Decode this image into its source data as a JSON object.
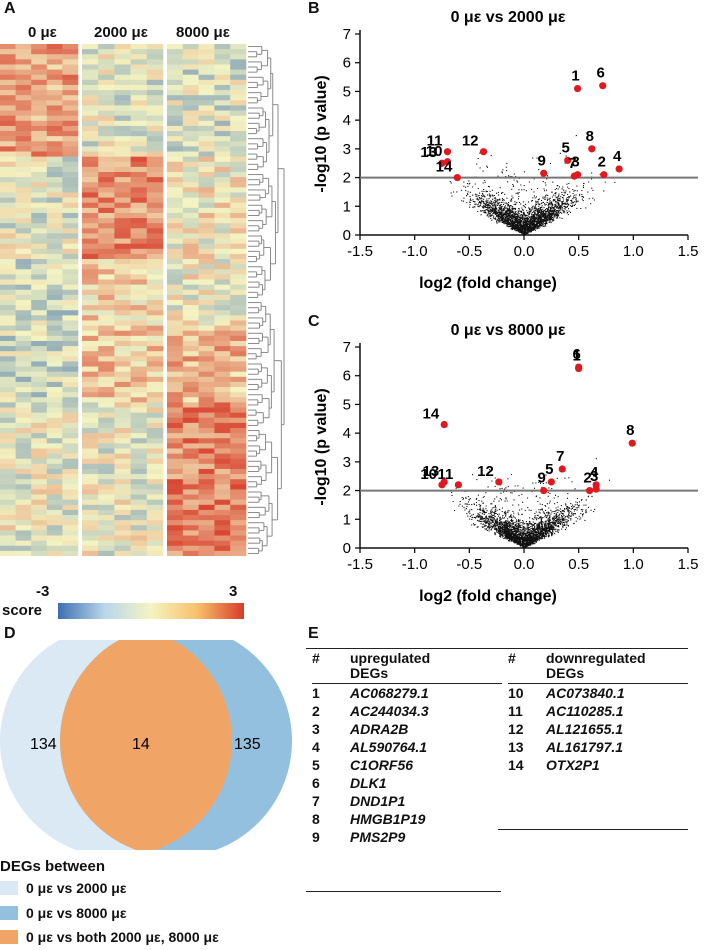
{
  "panels": {
    "a": "A",
    "b": "B",
    "c": "C",
    "d": "D",
    "e": "E"
  },
  "heatmap": {
    "groups": [
      "0 με",
      "2000 με",
      "8000 με"
    ],
    "scale_min": "-3",
    "scale_max": "3",
    "scale_label": "score",
    "colors": {
      "low": "#3d6fb0",
      "mid": "#f4f4c2",
      "high": "#d73c2a"
    }
  },
  "volcano_b": {
    "title": "0 με vs 2000  με",
    "xlabel": "log2 (fold change)",
    "ylabel": "-log10 (p value)",
    "xticks": [
      "-1.5",
      "-1.0",
      "-0.5",
      "0.0",
      "0.5",
      "1.0",
      "1.5"
    ],
    "yticks": [
      "0",
      "1",
      "2",
      "3",
      "4",
      "5",
      "6",
      "7"
    ],
    "threshold": 2,
    "labels": [
      {
        "id": "1",
        "x": 0.49,
        "y": 5.1
      },
      {
        "id": "6",
        "x": 0.72,
        "y": 5.2
      },
      {
        "id": "8",
        "x": 0.62,
        "y": 3.0
      },
      {
        "id": "5",
        "x": 0.4,
        "y": 2.6
      },
      {
        "id": "3",
        "x": 0.49,
        "y": 2.1
      },
      {
        "id": "2",
        "x": 0.73,
        "y": 2.1
      },
      {
        "id": "4",
        "x": 0.87,
        "y": 2.3
      },
      {
        "id": "7",
        "x": 0.46,
        "y": 2.05
      },
      {
        "id": "9",
        "x": 0.18,
        "y": 2.15
      },
      {
        "id": "11",
        "x": -0.7,
        "y": 2.9
      },
      {
        "id": "12",
        "x": -0.37,
        "y": 2.9
      },
      {
        "id": "13",
        "x": -0.75,
        "y": 2.5
      },
      {
        "id": "10",
        "x": -0.7,
        "y": 2.55
      },
      {
        "id": "14",
        "x": -0.61,
        "y": 2.0
      }
    ]
  },
  "volcano_c": {
    "title": "0 με vs 8000  με",
    "xlabel": "log2 (fold change)",
    "ylabel": "-log10 (p value)",
    "xticks": [
      "-1.5",
      "-1.0",
      "-0.5",
      "0.0",
      "0.5",
      "1.0",
      "1.5"
    ],
    "yticks": [
      "0",
      "1",
      "2",
      "3",
      "4",
      "5",
      "6",
      "7"
    ],
    "threshold": 2,
    "labels": [
      {
        "id": "6",
        "x": 0.5,
        "y": 6.3
      },
      {
        "id": "1",
        "x": 0.5,
        "y": 6.25
      },
      {
        "id": "8",
        "x": 0.99,
        "y": 3.65
      },
      {
        "id": "14",
        "x": -0.73,
        "y": 4.3
      },
      {
        "id": "7",
        "x": 0.35,
        "y": 2.75
      },
      {
        "id": "5",
        "x": 0.25,
        "y": 2.3
      },
      {
        "id": "4",
        "x": 0.66,
        "y": 2.2
      },
      {
        "id": "2",
        "x": 0.6,
        "y": 2.0
      },
      {
        "id": "3",
        "x": 0.66,
        "y": 2.05
      },
      {
        "id": "9",
        "x": 0.18,
        "y": 2.0
      },
      {
        "id": "12",
        "x": -0.23,
        "y": 2.3
      },
      {
        "id": "11",
        "x": -0.6,
        "y": 2.2
      },
      {
        "id": "13",
        "x": -0.73,
        "y": 2.3
      },
      {
        "id": "10",
        "x": -0.75,
        "y": 2.2
      }
    ]
  },
  "venn": {
    "left_count": "134",
    "overlap_count": "14",
    "right_count": "135",
    "legend_title": "DEGs between",
    "legend_items": [
      {
        "label": "0 με vs 2000 με",
        "color": "#dbe9f4"
      },
      {
        "label": "0 με vs 8000 με",
        "color": "#93c0de"
      },
      {
        "label": "0 με vs both 2000 με, 8000 με",
        "color": "#f0a566"
      }
    ]
  },
  "table_up": {
    "col_num": "#",
    "col_name_line1": "upregulated",
    "col_name_line2": "DEGs",
    "rows": [
      {
        "num": "1",
        "gene": "AC068279.1"
      },
      {
        "num": "2",
        "gene": "AC244034.3"
      },
      {
        "num": "3",
        "gene": "ADRA2B"
      },
      {
        "num": "4",
        "gene": "AL590764.1"
      },
      {
        "num": "5",
        "gene": "C1ORF56"
      },
      {
        "num": "6",
        "gene": "DLK1"
      },
      {
        "num": "7",
        "gene": "DND1P1"
      },
      {
        "num": "8",
        "gene": "HMGB1P19"
      },
      {
        "num": "9",
        "gene": "PMS2P9"
      }
    ]
  },
  "table_down": {
    "col_num": "#",
    "col_name_line1": "downregulated",
    "col_name_line2": "DEGs",
    "rows": [
      {
        "num": "10",
        "gene": "AC073840.1"
      },
      {
        "num": "11",
        "gene": "AC110285.1"
      },
      {
        "num": "12",
        "gene": "AL121655.1"
      },
      {
        "num": "13",
        "gene": "AL161797.1"
      },
      {
        "num": "14",
        "gene": "OTX2P1"
      }
    ]
  }
}
